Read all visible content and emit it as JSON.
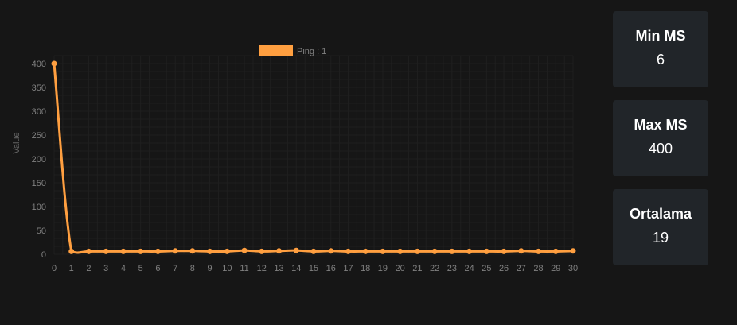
{
  "chart_data": {
    "type": "line",
    "x": [
      0,
      1,
      2,
      3,
      4,
      5,
      6,
      7,
      8,
      9,
      10,
      11,
      12,
      13,
      14,
      15,
      16,
      17,
      18,
      19,
      20,
      21,
      22,
      23,
      24,
      25,
      26,
      27,
      28,
      29,
      30
    ],
    "series": [
      {
        "name": "Ping : 1",
        "values": [
          400,
          6,
          6,
          6,
          6,
          6,
          6,
          7,
          7,
          6,
          6,
          8,
          6,
          7,
          8,
          6,
          7,
          6,
          6,
          6,
          6,
          6,
          6,
          6,
          6,
          6,
          6,
          7,
          6,
          6,
          7
        ]
      }
    ],
    "ylabel": "Value",
    "xlabel": "",
    "ylim": [
      0,
      400
    ],
    "y_ticks": [
      0,
      50,
      100,
      150,
      200,
      250,
      300,
      350,
      400
    ],
    "grid": true,
    "legend_position": "top-center",
    "colors": {
      "series": "#ff9f40",
      "tick_text": "#808080",
      "grid": "#1f1f1f",
      "background": "#161616"
    }
  },
  "stats": {
    "min": {
      "label": "Min MS",
      "value": "6"
    },
    "max": {
      "label": "Max MS",
      "value": "400"
    },
    "avg": {
      "label": "Ortalama",
      "value": "19"
    }
  }
}
